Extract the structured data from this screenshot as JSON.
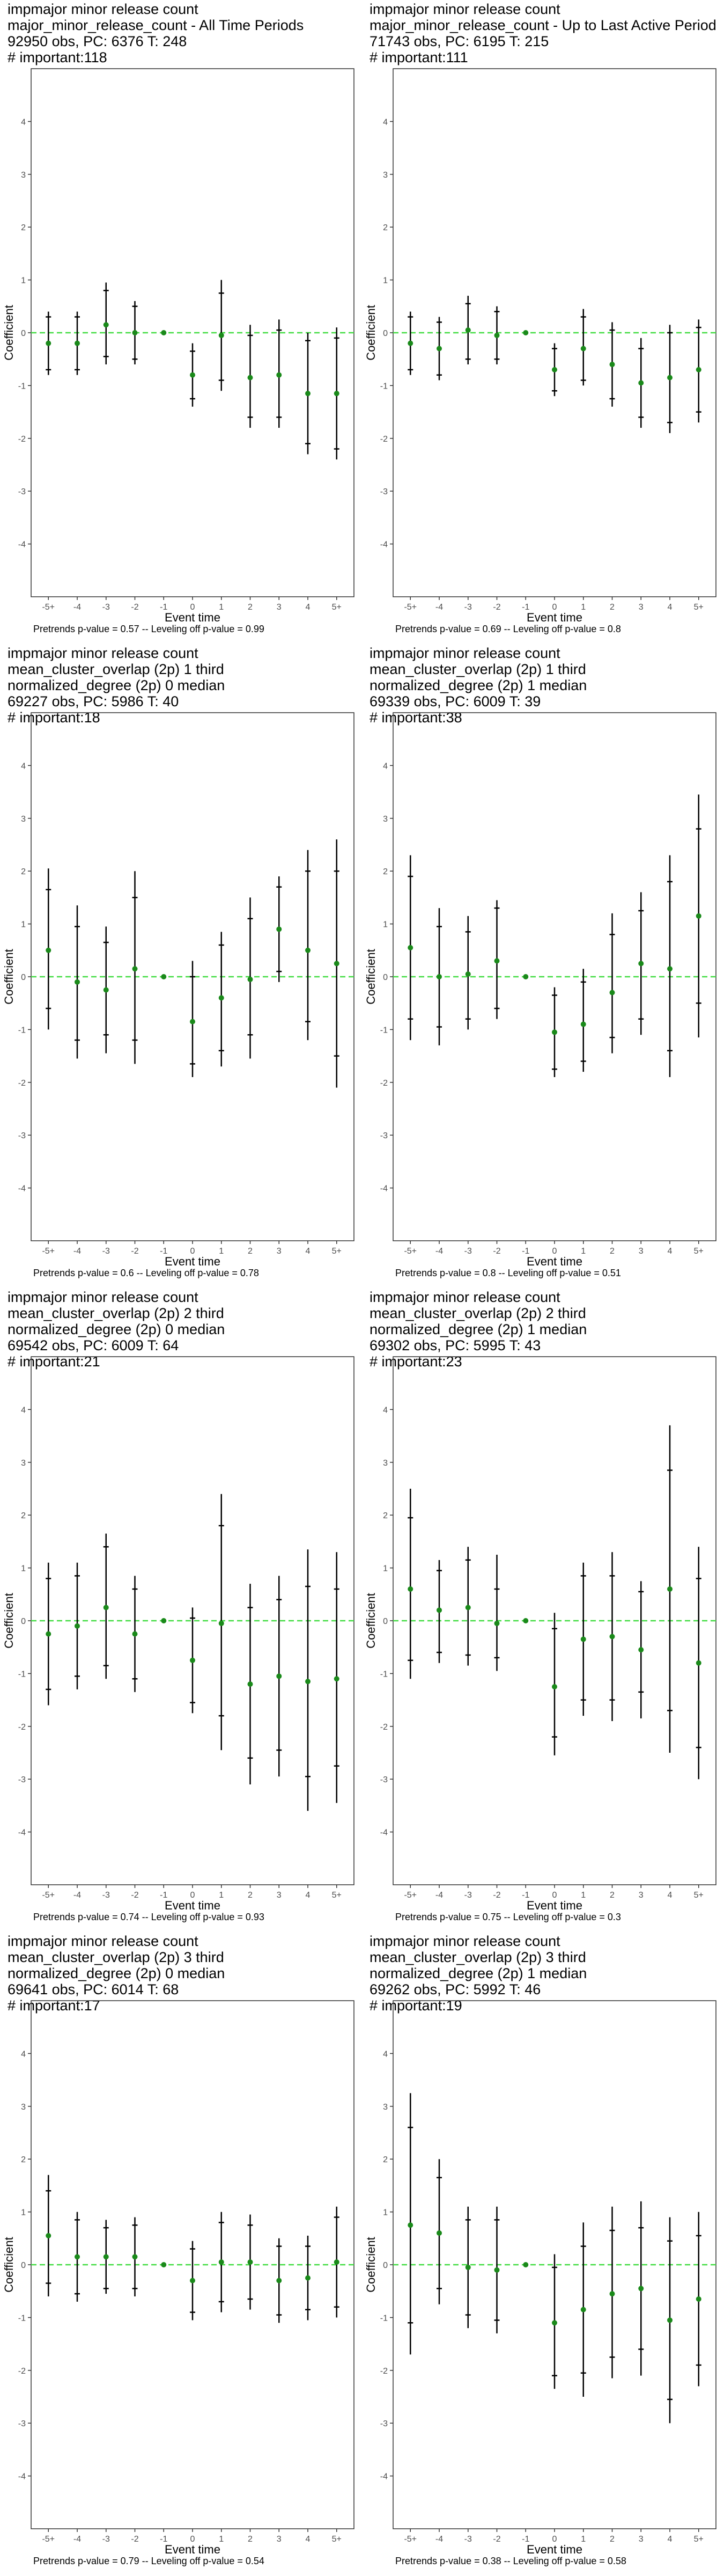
{
  "colors": {
    "point": "#1a8a1a",
    "zero_line": "#44dd44",
    "interval": "#000000",
    "frame": "#333333"
  },
  "chart_data": [
    {
      "type": "scatter",
      "title_lines": [
        " impmajor minor release count",
        "major_minor_release_count - All Time Periods",
        "92950 obs, PC: 6376 T: 248",
        "# important:118"
      ],
      "xlabel": "Event time",
      "ylabel": "Coefficient",
      "categories": [
        "-5+",
        "-4",
        "-3",
        "-2",
        "-1",
        "0",
        "1",
        "2",
        "3",
        "4",
        "5+"
      ],
      "ylim": [
        -5,
        5
      ],
      "yticks": [
        -4,
        -3,
        -2,
        -1,
        0,
        1,
        2,
        3,
        4
      ],
      "grid": false,
      "series": [
        {
          "values": [
            -0.2,
            -0.2,
            0.15,
            0.0,
            0.0,
            -0.8,
            -0.05,
            -0.85,
            -0.8,
            -1.15,
            -1.15
          ],
          "ci95_low": [
            -0.8,
            -0.8,
            -0.6,
            -0.6,
            0.0,
            -1.4,
            -1.1,
            -1.8,
            -1.8,
            -2.3,
            -2.4
          ],
          "ci95_high": [
            0.4,
            0.4,
            0.95,
            0.6,
            0.0,
            -0.2,
            1.0,
            0.15,
            0.25,
            0.0,
            0.1
          ],
          "ci90_low": [
            -0.7,
            -0.7,
            -0.45,
            -0.5,
            0.0,
            -1.25,
            -0.9,
            -1.6,
            -1.6,
            -2.1,
            -2.2
          ],
          "ci90_high": [
            0.3,
            0.3,
            0.8,
            0.5,
            0.0,
            -0.35,
            0.75,
            -0.05,
            0.05,
            -0.15,
            -0.1
          ]
        }
      ],
      "footnote": "Pretrends p-value = 0.57 -- Leveling off p-value = 0.99"
    },
    {
      "type": "scatter",
      "title_lines": [
        " impmajor minor release count",
        "major_minor_release_count - Up to Last Active Period",
        "71743 obs, PC: 6195 T: 215",
        "# important:111"
      ],
      "xlabel": "Event time",
      "ylabel": "Coefficient",
      "categories": [
        "-5+",
        "-4",
        "-3",
        "-2",
        "-1",
        "0",
        "1",
        "2",
        "3",
        "4",
        "5+"
      ],
      "ylim": [
        -5,
        5
      ],
      "yticks": [
        -4,
        -3,
        -2,
        -1,
        0,
        1,
        2,
        3,
        4
      ],
      "grid": false,
      "series": [
        {
          "values": [
            -0.2,
            -0.3,
            0.05,
            -0.05,
            0.0,
            -0.7,
            -0.3,
            -0.6,
            -0.95,
            -0.85,
            -0.7
          ],
          "ci95_low": [
            -0.8,
            -0.9,
            -0.6,
            -0.6,
            0.0,
            -1.2,
            -1.0,
            -1.4,
            -1.8,
            -1.9,
            -1.7
          ],
          "ci95_high": [
            0.4,
            0.3,
            0.7,
            0.5,
            0.0,
            -0.2,
            0.45,
            0.2,
            -0.1,
            0.15,
            0.25
          ],
          "ci90_low": [
            -0.7,
            -0.8,
            -0.5,
            -0.5,
            0.0,
            -1.1,
            -0.9,
            -1.25,
            -1.6,
            -1.7,
            -1.5
          ],
          "ci90_high": [
            0.3,
            0.2,
            0.55,
            0.4,
            0.0,
            -0.3,
            0.3,
            0.05,
            -0.3,
            0.0,
            0.1
          ]
        }
      ],
      "footnote": "Pretrends p-value = 0.69 -- Leveling off p-value = 0.8"
    },
    {
      "type": "scatter",
      "title_lines": [
        " impmajor minor release count",
        "mean_cluster_overlap (2p) 1 third",
        "normalized_degree (2p) 0 median",
        "69227 obs, PC: 5986 T: 40",
        "# important:18"
      ],
      "xlabel": "Event time",
      "ylabel": "Coefficient",
      "categories": [
        "-5+",
        "-4",
        "-3",
        "-2",
        "-1",
        "0",
        "1",
        "2",
        "3",
        "4",
        "5+"
      ],
      "ylim": [
        -5,
        5
      ],
      "yticks": [
        -4,
        -3,
        -2,
        -1,
        0,
        1,
        2,
        3,
        4
      ],
      "grid": false,
      "series": [
        {
          "values": [
            0.5,
            -0.1,
            -0.25,
            0.15,
            0.0,
            -0.85,
            -0.4,
            -0.05,
            0.9,
            0.5,
            0.25
          ],
          "ci95_low": [
            -1.0,
            -1.55,
            -1.45,
            -1.65,
            0.0,
            -1.9,
            -1.7,
            -1.55,
            -0.1,
            -1.2,
            -2.1
          ],
          "ci95_high": [
            2.05,
            1.35,
            0.95,
            2.0,
            0.0,
            0.3,
            0.85,
            1.5,
            1.9,
            2.4,
            2.6
          ],
          "ci90_low": [
            -0.6,
            -1.2,
            -1.1,
            -1.2,
            0.0,
            -1.65,
            -1.4,
            -1.1,
            0.1,
            -0.85,
            -1.5
          ],
          "ci90_high": [
            1.65,
            0.95,
            0.65,
            1.5,
            0.0,
            0.0,
            0.6,
            1.1,
            1.7,
            2.0,
            2.0
          ]
        }
      ],
      "footnote": "Pretrends p-value = 0.6 -- Leveling off p-value = 0.78"
    },
    {
      "type": "scatter",
      "title_lines": [
        " impmajor minor release count",
        "mean_cluster_overlap (2p) 1 third",
        "normalized_degree (2p) 1 median",
        "69339 obs, PC: 6009 T: 39",
        "# important:38"
      ],
      "xlabel": "Event time",
      "ylabel": "Coefficient",
      "categories": [
        "-5+",
        "-4",
        "-3",
        "-2",
        "-1",
        "0",
        "1",
        "2",
        "3",
        "4",
        "5+"
      ],
      "ylim": [
        -5,
        5
      ],
      "yticks": [
        -4,
        -3,
        -2,
        -1,
        0,
        1,
        2,
        3,
        4
      ],
      "grid": false,
      "series": [
        {
          "values": [
            0.55,
            0.0,
            0.05,
            0.3,
            0.0,
            -1.05,
            -0.9,
            -0.3,
            0.25,
            0.15,
            1.15
          ],
          "ci95_low": [
            -1.2,
            -1.3,
            -1.0,
            -0.8,
            0.0,
            -1.9,
            -1.8,
            -1.45,
            -1.1,
            -1.9,
            -1.15
          ],
          "ci95_high": [
            2.3,
            1.3,
            1.15,
            1.45,
            0.0,
            -0.2,
            0.15,
            1.2,
            1.6,
            2.3,
            3.45
          ],
          "ci90_low": [
            -0.8,
            -0.95,
            -0.8,
            -0.6,
            0.0,
            -1.75,
            -1.6,
            -1.15,
            -0.8,
            -1.4,
            -0.5
          ],
          "ci90_high": [
            1.9,
            0.95,
            0.85,
            1.3,
            0.0,
            -0.35,
            -0.1,
            0.8,
            1.25,
            1.8,
            2.8
          ]
        }
      ],
      "footnote": "Pretrends p-value = 0.8 -- Leveling off p-value = 0.51"
    },
    {
      "type": "scatter",
      "title_lines": [
        " impmajor minor release count",
        "mean_cluster_overlap (2p) 2 third",
        "normalized_degree (2p) 0 median",
        "69542 obs, PC: 6009 T: 64",
        "# important:21"
      ],
      "xlabel": "Event time",
      "ylabel": "Coefficient",
      "categories": [
        "-5+",
        "-4",
        "-3",
        "-2",
        "-1",
        "0",
        "1",
        "2",
        "3",
        "4",
        "5+"
      ],
      "ylim": [
        -5,
        5
      ],
      "yticks": [
        -4,
        -3,
        -2,
        -1,
        0,
        1,
        2,
        3,
        4
      ],
      "grid": false,
      "series": [
        {
          "values": [
            -0.25,
            -0.1,
            0.25,
            -0.25,
            0.0,
            -0.75,
            -0.05,
            -1.2,
            -1.05,
            -1.15,
            -1.1
          ],
          "ci95_low": [
            -1.6,
            -1.3,
            -1.1,
            -1.35,
            0.0,
            -1.75,
            -2.45,
            -3.1,
            -2.95,
            -3.6,
            -3.45
          ],
          "ci95_high": [
            1.1,
            1.1,
            1.65,
            0.85,
            0.0,
            0.25,
            2.4,
            0.7,
            0.85,
            1.35,
            1.3
          ],
          "ci90_low": [
            -1.3,
            -1.05,
            -0.85,
            -1.1,
            0.0,
            -1.55,
            -1.8,
            -2.6,
            -2.45,
            -2.95,
            -2.75
          ],
          "ci90_high": [
            0.8,
            0.85,
            1.4,
            0.6,
            0.0,
            0.05,
            1.8,
            0.25,
            0.4,
            0.65,
            0.6
          ]
        }
      ],
      "footnote": "Pretrends p-value = 0.74 -- Leveling off p-value = 0.93"
    },
    {
      "type": "scatter",
      "title_lines": [
        " impmajor minor release count",
        "mean_cluster_overlap (2p) 2 third",
        "normalized_degree (2p) 1 median",
        "69302 obs, PC: 5995 T: 43",
        "# important:23"
      ],
      "xlabel": "Event time",
      "ylabel": "Coefficient",
      "categories": [
        "-5+",
        "-4",
        "-3",
        "-2",
        "-1",
        "0",
        "1",
        "2",
        "3",
        "4",
        "5+"
      ],
      "ylim": [
        -5,
        5
      ],
      "yticks": [
        -4,
        -3,
        -2,
        -1,
        0,
        1,
        2,
        3,
        4
      ],
      "grid": false,
      "series": [
        {
          "values": [
            0.6,
            0.2,
            0.25,
            -0.05,
            0.0,
            -1.25,
            -0.35,
            -0.3,
            -0.55,
            0.6,
            -0.8
          ],
          "ci95_low": [
            -1.1,
            -0.8,
            -0.85,
            -0.95,
            0.0,
            -2.55,
            -1.8,
            -1.9,
            -1.85,
            -2.5,
            -3.0
          ],
          "ci95_high": [
            2.5,
            1.15,
            1.4,
            1.25,
            0.0,
            0.15,
            1.1,
            1.3,
            0.75,
            3.7,
            1.4
          ],
          "ci90_low": [
            -0.75,
            -0.6,
            -0.65,
            -0.7,
            0.0,
            -2.2,
            -1.5,
            -1.5,
            -1.35,
            -1.7,
            -2.4
          ],
          "ci90_high": [
            1.95,
            0.95,
            1.15,
            0.6,
            0.0,
            -0.15,
            0.85,
            0.85,
            0.55,
            2.85,
            0.8
          ]
        }
      ],
      "footnote": "Pretrends p-value = 0.75 -- Leveling off p-value = 0.3"
    },
    {
      "type": "scatter",
      "title_lines": [
        " impmajor minor release count",
        "mean_cluster_overlap (2p) 3 third",
        "normalized_degree (2p) 0 median",
        "69641 obs, PC: 6014 T: 68",
        "# important:17"
      ],
      "xlabel": "Event time",
      "ylabel": "Coefficient",
      "categories": [
        "-5+",
        "-4",
        "-3",
        "-2",
        "-1",
        "0",
        "1",
        "2",
        "3",
        "4",
        "5+"
      ],
      "ylim": [
        -5,
        5
      ],
      "yticks": [
        -4,
        -3,
        -2,
        -1,
        0,
        1,
        2,
        3,
        4
      ],
      "grid": false,
      "series": [
        {
          "values": [
            0.55,
            0.15,
            0.15,
            0.15,
            0.0,
            -0.3,
            0.05,
            0.05,
            -0.3,
            -0.25,
            0.05
          ],
          "ci95_low": [
            -0.6,
            -0.7,
            -0.55,
            -0.6,
            0.0,
            -1.05,
            -0.9,
            -0.85,
            -1.1,
            -1.05,
            -1.0
          ],
          "ci95_high": [
            1.7,
            1.0,
            0.85,
            0.9,
            0.0,
            0.45,
            1.0,
            0.95,
            0.5,
            0.55,
            1.1
          ],
          "ci90_low": [
            -0.35,
            -0.55,
            -0.45,
            -0.45,
            0.0,
            -0.9,
            -0.7,
            -0.65,
            -0.95,
            -0.85,
            -0.8
          ],
          "ci90_high": [
            1.4,
            0.85,
            0.7,
            0.75,
            0.0,
            0.3,
            0.8,
            0.75,
            0.35,
            0.35,
            0.9
          ]
        }
      ],
      "footnote": "Pretrends p-value = 0.79 -- Leveling off p-value = 0.54"
    },
    {
      "type": "scatter",
      "title_lines": [
        " impmajor minor release count",
        "mean_cluster_overlap (2p) 3 third",
        "normalized_degree (2p) 1 median",
        "69262 obs, PC: 5992 T: 46",
        "# important:19"
      ],
      "xlabel": "Event time",
      "ylabel": "Coefficient",
      "categories": [
        "-5+",
        "-4",
        "-3",
        "-2",
        "-1",
        "0",
        "1",
        "2",
        "3",
        "4",
        "5+"
      ],
      "ylim": [
        -5,
        5
      ],
      "yticks": [
        -4,
        -3,
        -2,
        -1,
        0,
        1,
        2,
        3,
        4
      ],
      "grid": false,
      "series": [
        {
          "values": [
            0.75,
            0.6,
            -0.05,
            -0.1,
            0.0,
            -1.1,
            -0.85,
            -0.55,
            -0.45,
            -1.05,
            -0.65
          ],
          "ci95_low": [
            -1.7,
            -0.75,
            -1.2,
            -1.3,
            0.0,
            -2.35,
            -2.5,
            -2.15,
            -2.1,
            -3.0,
            -2.3
          ],
          "ci95_high": [
            3.25,
            2.0,
            1.1,
            1.1,
            0.0,
            0.2,
            0.8,
            1.1,
            1.2,
            0.9,
            1.0
          ],
          "ci90_low": [
            -1.1,
            -0.45,
            -0.95,
            -1.05,
            0.0,
            -2.1,
            -2.05,
            -1.75,
            -1.6,
            -2.55,
            -1.9
          ],
          "ci90_high": [
            2.6,
            1.65,
            0.85,
            0.85,
            0.0,
            -0.05,
            0.35,
            0.65,
            0.7,
            0.45,
            0.55
          ]
        }
      ],
      "footnote": "Pretrends p-value = 0.38 -- Leveling off p-value = 0.58"
    }
  ]
}
